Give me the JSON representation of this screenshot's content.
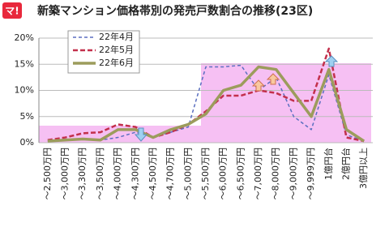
{
  "chart_data": {
    "type": "line",
    "title": "新築マンション価格帯別の発売戸数割合の推移(23区)",
    "logo": "マ!",
    "categories": [
      "～2,500万円",
      "～3,000万円",
      "～3,300万円",
      "～3,500万円",
      "～4,000万円",
      "～4,300万円",
      "～4,500万円",
      "～4,700万円",
      "～5,000万円",
      "～5,500万円",
      "～6,000万円",
      "～6,500万円",
      "～7,000万円",
      "～8,000万円",
      "～9,000万円",
      "～9,999万円",
      "1億円台",
      "2億円台",
      "3億円以上"
    ],
    "series": [
      {
        "name": "22年4月",
        "color": "#5b6fc0",
        "dash": "4 3",
        "width": 1.5,
        "values": [
          0.3,
          0.5,
          0.7,
          0.5,
          1.0,
          2.0,
          1.0,
          2.0,
          3.0,
          14.5,
          14.5,
          14.8,
          10.0,
          12.5,
          5.0,
          2.5,
          13.0,
          1.5,
          0.3
        ]
      },
      {
        "name": "22年5月",
        "color": "#c3304c",
        "dash": "6 3",
        "width": 2.5,
        "values": [
          0.5,
          1.0,
          1.8,
          2.0,
          3.5,
          3.0,
          1.0,
          2.0,
          3.5,
          6.0,
          9.0,
          9.0,
          10.0,
          9.5,
          8.0,
          8.0,
          18.0,
          1.0,
          0.3
        ]
      },
      {
        "name": "22年6月",
        "color": "#9c9c5c",
        "dash": "",
        "width": 3.5,
        "values": [
          0.3,
          0.5,
          0.7,
          0.5,
          2.5,
          2.5,
          1.0,
          2.5,
          3.5,
          5.5,
          10.0,
          11.0,
          14.5,
          14.0,
          9.5,
          5.0,
          14.0,
          2.5,
          0.3
        ]
      }
    ],
    "ylim": [
      0,
      20
    ],
    "yticks": [
      {
        "value": 0,
        "label": "0%"
      },
      {
        "value": 5,
        "label": "5%"
      },
      {
        "value": 10,
        "label": "10%"
      },
      {
        "value": 15,
        "label": "15%"
      },
      {
        "value": 20,
        "label": "20%"
      }
    ],
    "grid": true
  }
}
